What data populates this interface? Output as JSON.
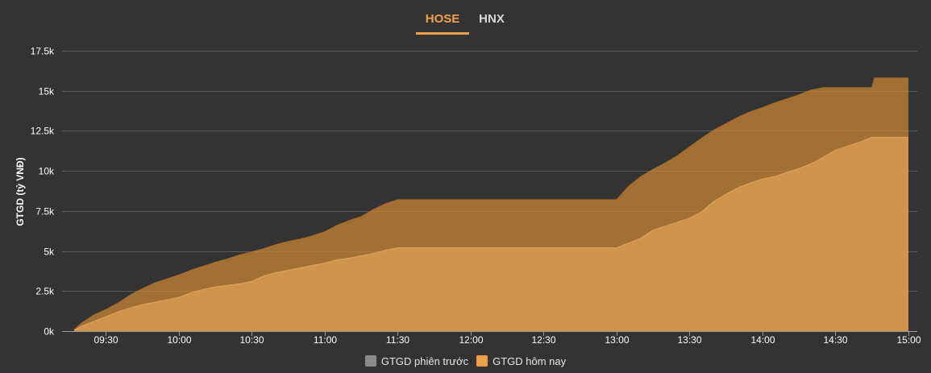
{
  "tabs": [
    {
      "label": "HOSE",
      "active": true
    },
    {
      "label": "HNX",
      "active": false
    }
  ],
  "colors": {
    "background": "#333333",
    "accent": "#f0a04a",
    "previous_fill": "#c78536",
    "today_fill": "#d99a52",
    "grid": "#5c5c5c"
  },
  "chart_data": {
    "type": "area",
    "ylabel": "GTGD (tỷ VNĐ)",
    "xlabel": "",
    "ylim": [
      0,
      17500
    ],
    "yticks": [
      0,
      2500,
      5000,
      7500,
      10000,
      12500,
      15000,
      17500
    ],
    "ytick_labels": [
      "0k",
      "2.5k",
      "5k",
      "7.5k",
      "10k",
      "12.5k",
      "15k",
      "17.5k"
    ],
    "xlim": [
      "09:15",
      "15:00"
    ],
    "xticks": [
      "09:30",
      "10:00",
      "10:30",
      "11:00",
      "11:30",
      "12:00",
      "12:30",
      "13:00",
      "13:30",
      "14:00",
      "14:30",
      "15:00"
    ],
    "grid": true,
    "legend_position": "bottom-center",
    "series": [
      {
        "name": "GTGD phiên trước",
        "color": "#c78536",
        "points": [
          [
            "09:17",
            100
          ],
          [
            "09:20",
            500
          ],
          [
            "09:25",
            1000
          ],
          [
            "09:30",
            1350
          ],
          [
            "09:35",
            1750
          ],
          [
            "09:40",
            2250
          ],
          [
            "09:45",
            2650
          ],
          [
            "09:50",
            3000
          ],
          [
            "09:55",
            3250
          ],
          [
            "10:00",
            3500
          ],
          [
            "10:05",
            3800
          ],
          [
            "10:10",
            4050
          ],
          [
            "10:15",
            4300
          ],
          [
            "10:20",
            4500
          ],
          [
            "10:25",
            4750
          ],
          [
            "10:30",
            4950
          ],
          [
            "10:35",
            5150
          ],
          [
            "10:40",
            5400
          ],
          [
            "10:45",
            5600
          ],
          [
            "10:50",
            5750
          ],
          [
            "10:55",
            5950
          ],
          [
            "11:00",
            6200
          ],
          [
            "11:05",
            6600
          ],
          [
            "11:10",
            6900
          ],
          [
            "11:15",
            7150
          ],
          [
            "11:20",
            7600
          ],
          [
            "11:25",
            7950
          ],
          [
            "11:30",
            8200
          ],
          [
            "13:00",
            8200
          ],
          [
            "13:05",
            9050
          ],
          [
            "13:10",
            9650
          ],
          [
            "13:15",
            10100
          ],
          [
            "13:20",
            10500
          ],
          [
            "13:25",
            10950
          ],
          [
            "13:30",
            11500
          ],
          [
            "13:35",
            12050
          ],
          [
            "13:40",
            12550
          ],
          [
            "13:45",
            12950
          ],
          [
            "13:50",
            13350
          ],
          [
            "13:55",
            13700
          ],
          [
            "14:00",
            13950
          ],
          [
            "14:05",
            14250
          ],
          [
            "14:10",
            14500
          ],
          [
            "14:15",
            14750
          ],
          [
            "14:20",
            15050
          ],
          [
            "14:25",
            15200
          ],
          [
            "14:45",
            15200
          ],
          [
            "14:46",
            15800
          ],
          [
            "15:00",
            15800
          ]
        ]
      },
      {
        "name": "GTGD hôm nay",
        "color": "#d99a52",
        "points": [
          [
            "09:17",
            50
          ],
          [
            "09:20",
            300
          ],
          [
            "09:25",
            600
          ],
          [
            "09:30",
            900
          ],
          [
            "09:35",
            1200
          ],
          [
            "09:40",
            1450
          ],
          [
            "09:45",
            1650
          ],
          [
            "09:50",
            1800
          ],
          [
            "09:55",
            1950
          ],
          [
            "10:00",
            2100
          ],
          [
            "10:05",
            2400
          ],
          [
            "10:10",
            2600
          ],
          [
            "10:15",
            2750
          ],
          [
            "10:20",
            2850
          ],
          [
            "10:25",
            2950
          ],
          [
            "10:30",
            3100
          ],
          [
            "10:35",
            3450
          ],
          [
            "10:40",
            3650
          ],
          [
            "10:45",
            3800
          ],
          [
            "10:50",
            3950
          ],
          [
            "10:55",
            4100
          ],
          [
            "11:00",
            4250
          ],
          [
            "11:05",
            4450
          ],
          [
            "11:10",
            4550
          ],
          [
            "11:15",
            4700
          ],
          [
            "11:20",
            4850
          ],
          [
            "11:25",
            5050
          ],
          [
            "11:30",
            5200
          ],
          [
            "13:00",
            5200
          ],
          [
            "13:05",
            5500
          ],
          [
            "13:10",
            5800
          ],
          [
            "13:15",
            6300
          ],
          [
            "13:20",
            6550
          ],
          [
            "13:25",
            6800
          ],
          [
            "13:30",
            7050
          ],
          [
            "13:35",
            7450
          ],
          [
            "13:40",
            8100
          ],
          [
            "13:45",
            8550
          ],
          [
            "13:50",
            8950
          ],
          [
            "13:55",
            9250
          ],
          [
            "14:00",
            9500
          ],
          [
            "14:05",
            9650
          ],
          [
            "14:10",
            9900
          ],
          [
            "14:15",
            10150
          ],
          [
            "14:20",
            10450
          ],
          [
            "14:25",
            10850
          ],
          [
            "14:30",
            11300
          ],
          [
            "14:35",
            11550
          ],
          [
            "14:40",
            11800
          ],
          [
            "14:45",
            12100
          ],
          [
            "15:00",
            12100
          ]
        ]
      }
    ]
  }
}
